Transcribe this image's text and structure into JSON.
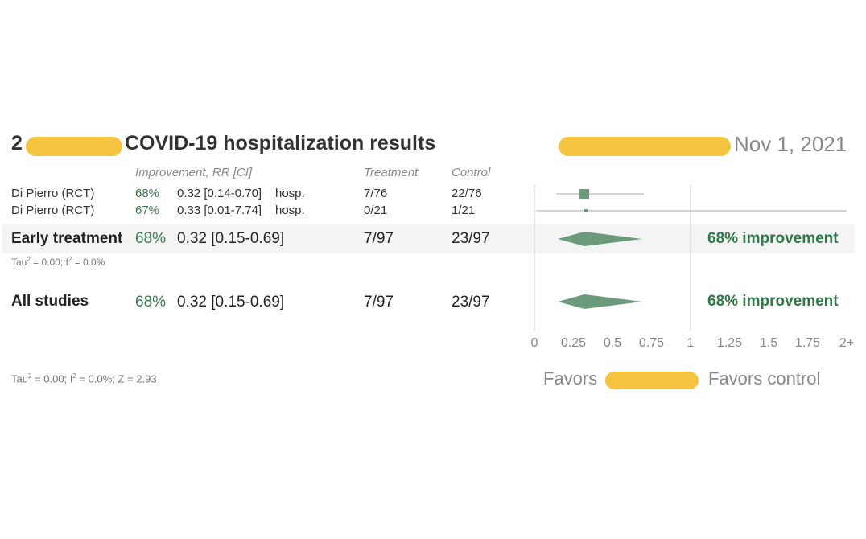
{
  "header": {
    "title_prefix": "2",
    "title_suffix": "COVID-19 hospitalization results",
    "date": "Nov 1, 2021"
  },
  "columns": {
    "improvement": "Improvement, RR [CI]",
    "treatment": "Treatment",
    "control": "Control"
  },
  "studies": [
    {
      "name": "Di Pierro (RCT)",
      "improvement": "68%",
      "rr_ci": "0.32 [0.14-0.70]",
      "outcome": "hosp.",
      "treatment": "7/76",
      "control": "22/76"
    },
    {
      "name": "Di Pierro (RCT)",
      "improvement": "67%",
      "rr_ci": "0.33 [0.01-7.74]",
      "outcome": "hosp.",
      "treatment": "0/21",
      "control": "1/21"
    }
  ],
  "early": {
    "label": "Early treatment",
    "improvement": "68%",
    "rr_ci": "0.32 [0.15-0.69]",
    "treatment": "7/97",
    "control": "23/97",
    "summary": "68% improvement",
    "tau_label": "Tau",
    "tau_rest": " = 0.00; I",
    "i2_rest": " = 0.0%"
  },
  "all": {
    "label": "All studies",
    "improvement": "68%",
    "rr_ci": "0.32 [0.15-0.69]",
    "treatment": "7/97",
    "control": "23/97",
    "summary": "68% improvement",
    "tau_label": "Tau",
    "tau_rest": " = 0.00; I",
    "i2_rest": " = 0.0%; Z = 2.93"
  },
  "favors": {
    "left": "Favors",
    "right": "Favors control"
  },
  "colors": {
    "marker": "#6b9b7b",
    "green_text": "#3b7a52",
    "redaction": "#f5c542"
  },
  "chart_data": {
    "type": "forest",
    "xlabel": "",
    "ylabel": "",
    "xlim": [
      0,
      2
    ],
    "ticks": [
      {
        "value": 0,
        "label": "0"
      },
      {
        "value": 0.25,
        "label": "0.25"
      },
      {
        "value": 0.5,
        "label": "0.5"
      },
      {
        "value": 0.75,
        "label": "0.75"
      },
      {
        "value": 1,
        "label": "1"
      },
      {
        "value": 1.25,
        "label": "1.25"
      },
      {
        "value": 1.5,
        "label": "1.5"
      },
      {
        "value": 1.75,
        "label": "1.75"
      },
      {
        "value": 2,
        "label": "2+"
      }
    ],
    "studies": [
      {
        "name": "Di Pierro (RCT)",
        "rr": 0.32,
        "ci": [
          0.14,
          0.7
        ],
        "weight": "large"
      },
      {
        "name": "Di Pierro (RCT)",
        "rr": 0.33,
        "ci": [
          0.01,
          7.74
        ],
        "weight": "small"
      }
    ],
    "pooled": [
      {
        "name": "Early treatment",
        "rr": 0.32,
        "ci": [
          0.15,
          0.69
        ]
      },
      {
        "name": "All studies",
        "rr": 0.32,
        "ci": [
          0.15,
          0.69
        ]
      }
    ]
  }
}
